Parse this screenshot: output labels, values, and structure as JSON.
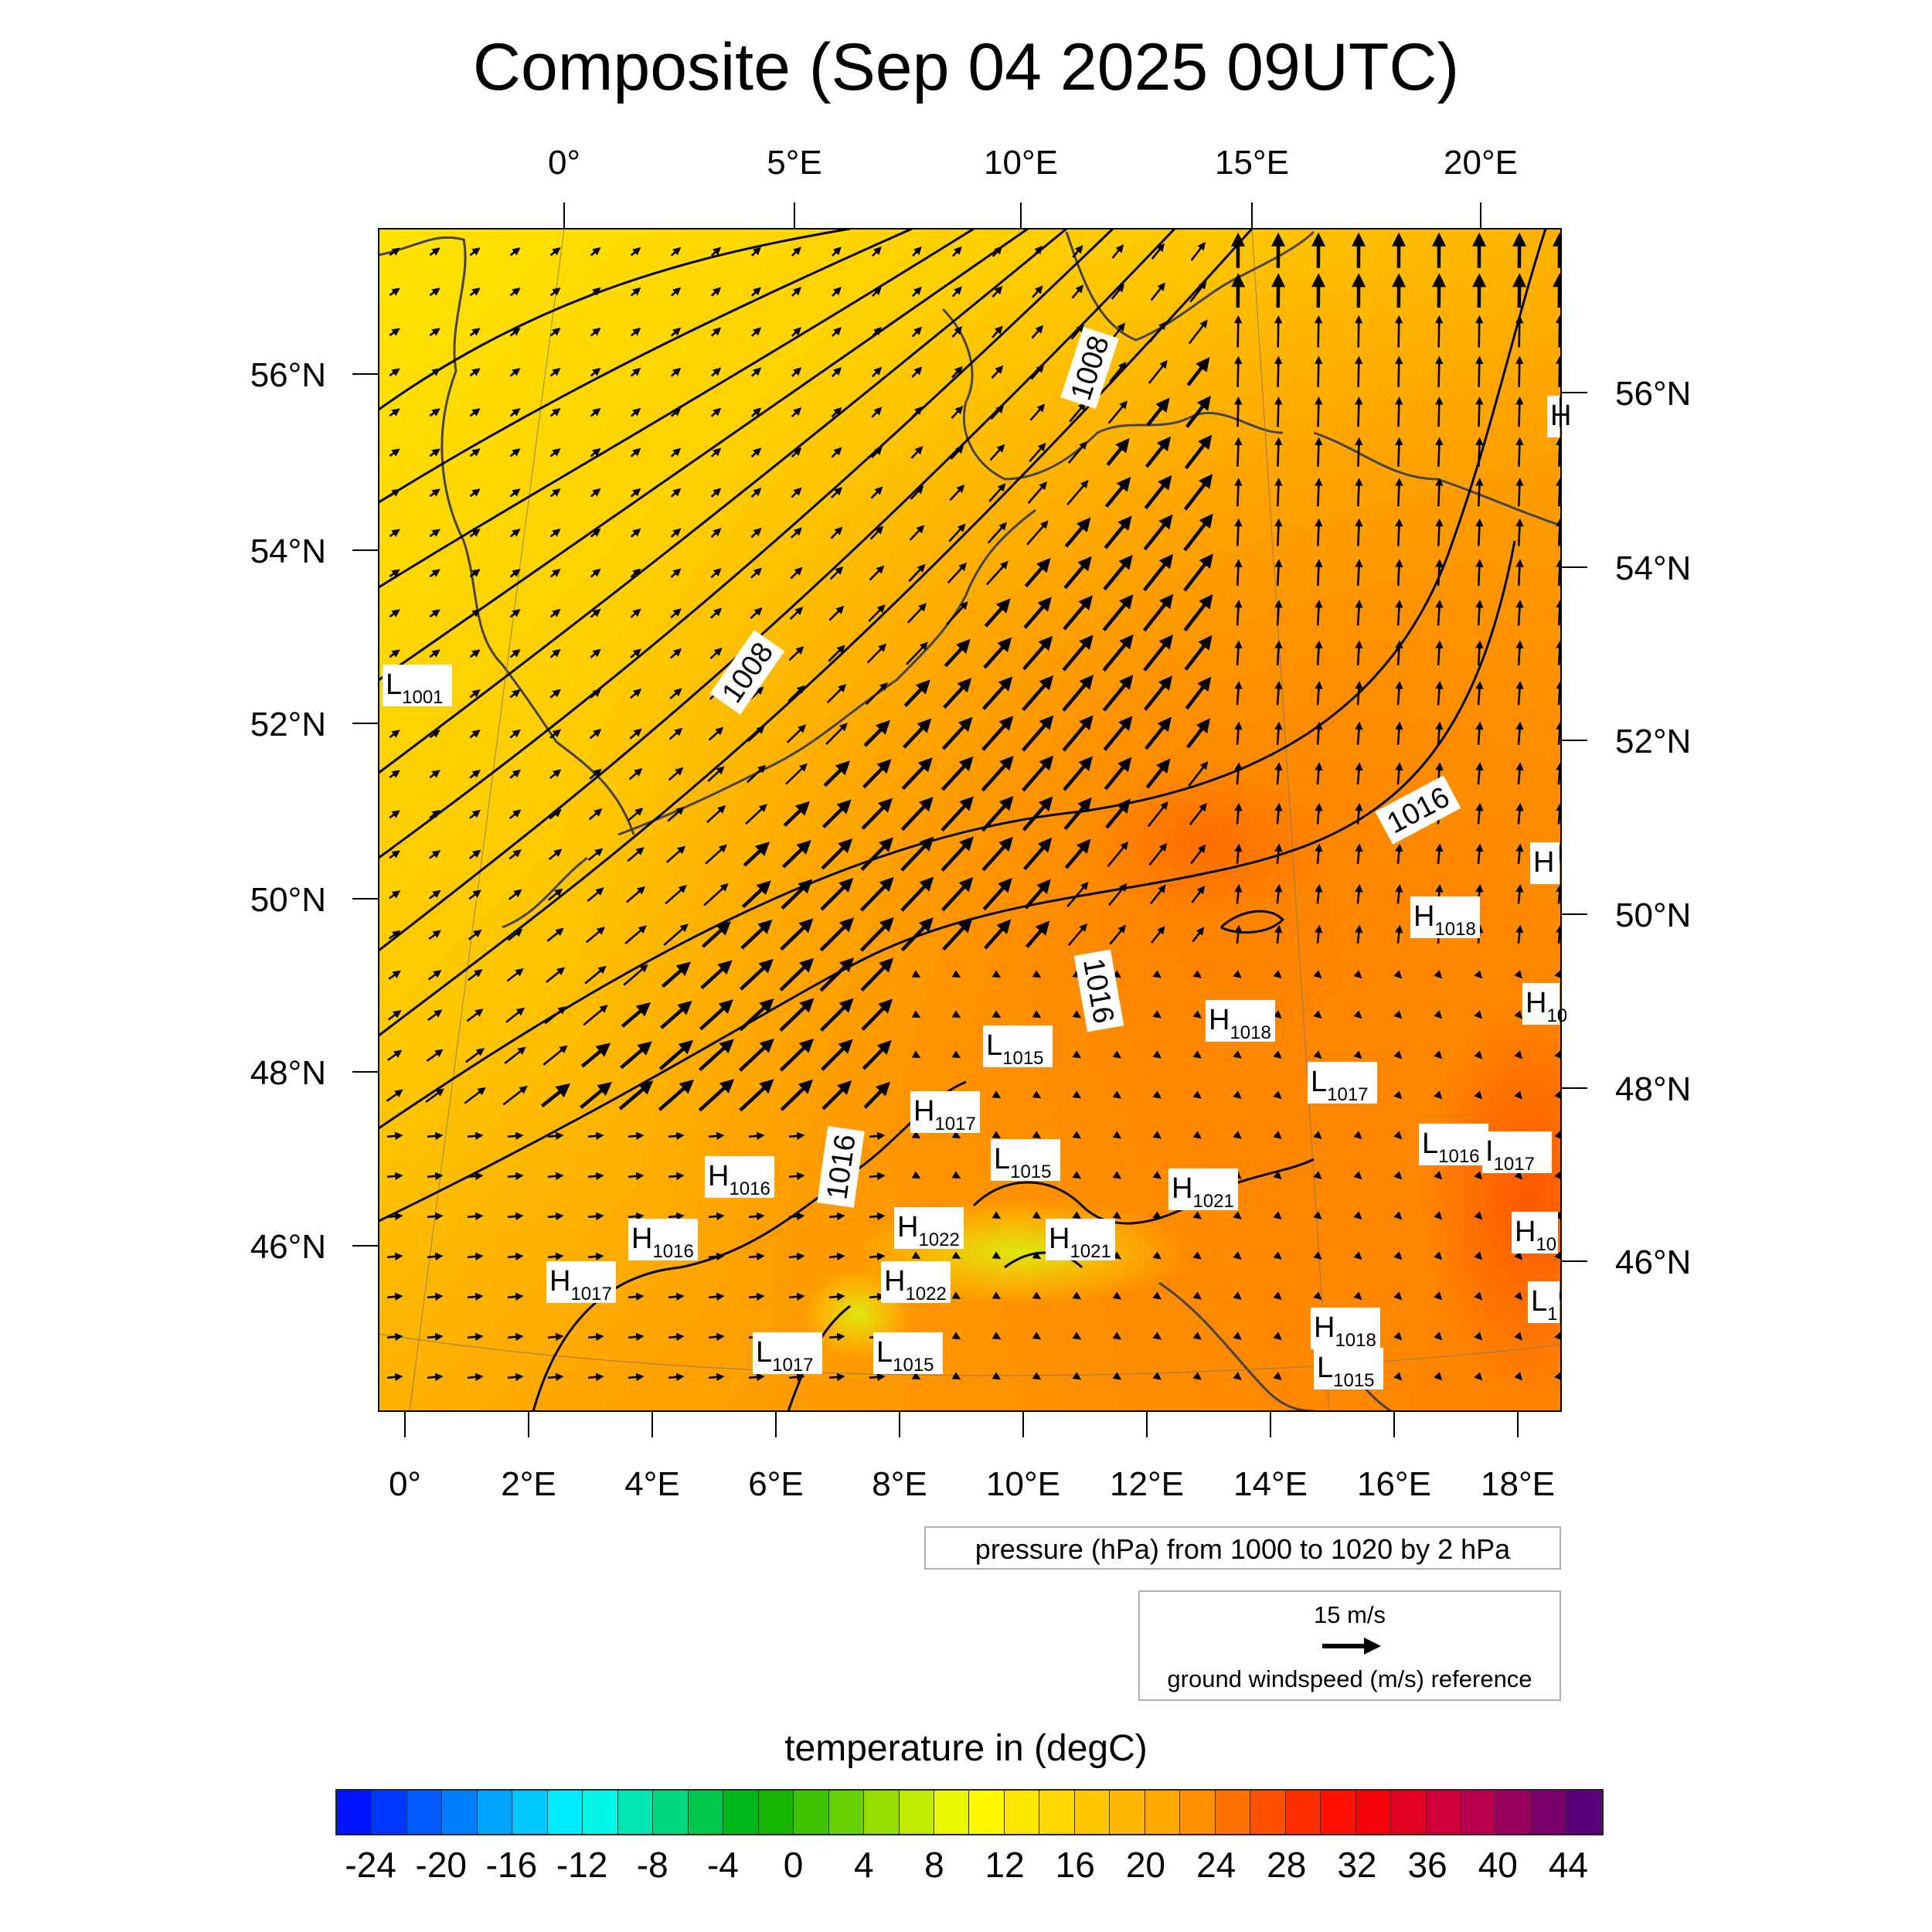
{
  "title": "Composite (Sep 04 2025 09UTC)",
  "map": {
    "top_lon_labels": [
      "0°",
      "5°E",
      "10°E",
      "15°E",
      "20°E"
    ],
    "bottom_lon_labels": [
      "0°",
      "2°E",
      "4°E",
      "6°E",
      "8°E",
      "10°E",
      "12°E",
      "14°E",
      "16°E",
      "18°E"
    ],
    "left_lat_labels": [
      "56°N",
      "54°N",
      "52°N",
      "50°N",
      "48°N",
      "46°N"
    ],
    "right_lat_labels": [
      "56°N",
      "54°N",
      "52°N",
      "50°N",
      "48°N",
      "46°N"
    ],
    "contour_labels": [
      "1008",
      "1008",
      "1016",
      "1016",
      "1016"
    ],
    "pressure_centers": [
      {
        "type": "L",
        "value": "1001"
      },
      {
        "type": "H",
        "value": ""
      },
      {
        "type": "H",
        "value": ""
      },
      {
        "type": "H",
        "value": "1018"
      },
      {
        "type": "H",
        "value": "10"
      },
      {
        "type": "H",
        "value": "1018"
      },
      {
        "type": "L",
        "value": "1015"
      },
      {
        "type": "L",
        "value": "1017"
      },
      {
        "type": "H",
        "value": "1017"
      },
      {
        "type": "L",
        "value": "1015"
      },
      {
        "type": "L",
        "value": "1016"
      },
      {
        "type": "I",
        "value": "1017"
      },
      {
        "type": "H",
        "value": "1016"
      },
      {
        "type": "H",
        "value": "1021"
      },
      {
        "type": "H",
        "value": "1016"
      },
      {
        "type": "H",
        "value": "1022"
      },
      {
        "type": "H",
        "value": "1021"
      },
      {
        "type": "H",
        "value": "10"
      },
      {
        "type": "H",
        "value": "1017"
      },
      {
        "type": "H",
        "value": "1022"
      },
      {
        "type": "L",
        "value": "1"
      },
      {
        "type": "H",
        "value": "1018"
      },
      {
        "type": "L",
        "value": "1015"
      },
      {
        "type": "L",
        "value": "1017"
      },
      {
        "type": "L",
        "value": "1015"
      }
    ]
  },
  "info_text": "pressure (hPa) from 1000 to 1020 by 2 hPa",
  "wind_reference": {
    "speed": "15 m/s",
    "label": "ground windspeed (m/s) reference"
  },
  "colorbar": {
    "title": "temperature in (degC)",
    "tick_labels": [
      "-24",
      "-20",
      "-16",
      "-12",
      "-8",
      "-4",
      "0",
      "4",
      "8",
      "12",
      "16",
      "20",
      "24",
      "28",
      "32",
      "36",
      "40",
      "44"
    ],
    "min": -26,
    "max": 46,
    "step": 2
  },
  "colors": {
    "cold": "#0000ff",
    "cyan": "#00ffff",
    "green": "#00b000",
    "yellow": "#ffff00",
    "orange": "#ff8c00",
    "red": "#ff0000",
    "purple": "#4b0082"
  }
}
